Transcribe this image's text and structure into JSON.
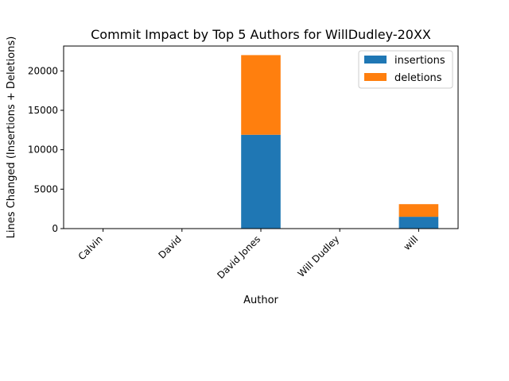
{
  "chart_data": {
    "type": "bar",
    "stacked": true,
    "title": "Commit Impact by Top 5 Authors for WillDudley-20XX",
    "xlabel": "Author",
    "ylabel": "Lines Changed (Insertions + Deletions)",
    "categories": [
      "Calvin",
      "David",
      "David Jones",
      "Will Dudley",
      "will"
    ],
    "series": [
      {
        "name": "insertions",
        "color": "#1f77b4",
        "values": [
          0,
          0,
          11900,
          0,
          1500
        ]
      },
      {
        "name": "deletions",
        "color": "#ff7f0e",
        "values": [
          0,
          0,
          10100,
          0,
          1600
        ]
      }
    ],
    "ylim": [
      0,
      23150
    ],
    "yticks": [
      0,
      5000,
      10000,
      15000,
      20000
    ],
    "ytick_labels": [
      "0",
      "5000",
      "10000",
      "15000",
      "20000"
    ],
    "legend_position": "top-right",
    "grid": false
  }
}
